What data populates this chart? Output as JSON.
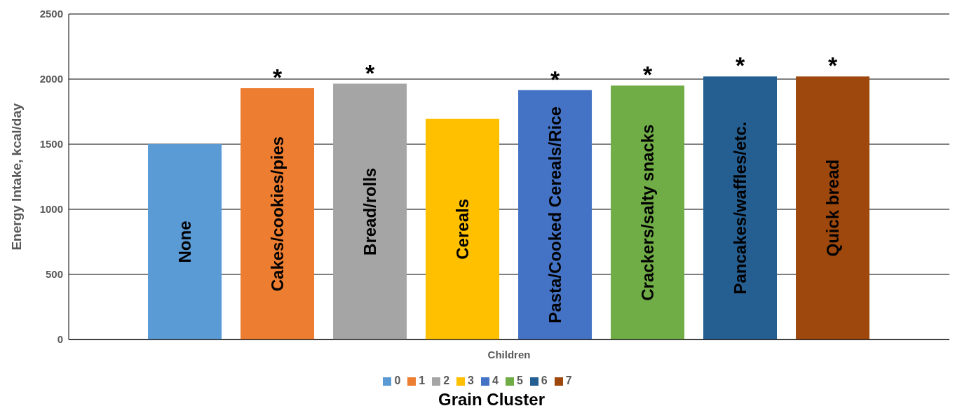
{
  "chart_data": {
    "type": "bar",
    "xlabel": "Grain Cluster",
    "ylabel": "Energy Intake, kcal/day",
    "categories": [
      "Children"
    ],
    "series": [
      {
        "name": "0",
        "color": "#5b9bd5",
        "values": [
          1500
        ],
        "value_labels": [
          "None"
        ]
      },
      {
        "name": "1",
        "color": "#ed7d31",
        "values": [
          1930
        ],
        "value_labels": [
          "Cakes/cookies/pies"
        ]
      },
      {
        "name": "2",
        "color": "#a5a5a5",
        "values": [
          1965
        ],
        "value_labels": [
          "Bread/rolls"
        ]
      },
      {
        "name": "3",
        "color": "#ffc000",
        "values": [
          1695
        ],
        "value_labels": [
          "Cereals"
        ]
      },
      {
        "name": "4",
        "color": "#4472c4",
        "values": [
          1915
        ],
        "value_labels": [
          "Pasta/Cooked Cereals/Rice"
        ]
      },
      {
        "name": "5",
        "color": "#70ad47",
        "values": [
          1950
        ],
        "value_labels": [
          "Crackers/salty snacks"
        ]
      },
      {
        "name": "6",
        "color": "#255e91",
        "values": [
          2020
        ],
        "value_labels": [
          "Pancakes/waffles/etc."
        ]
      },
      {
        "name": "7",
        "color": "#9e480e",
        "values": [
          2020
        ],
        "value_labels": [
          "Quick bread"
        ]
      }
    ],
    "annotations": [
      null,
      "*",
      "*",
      null,
      "*",
      "*",
      "*",
      "*"
    ],
    "ylim": [
      0,
      2500
    ],
    "yticks": [
      0,
      500,
      1000,
      1500,
      2000,
      2500
    ],
    "grid": "y",
    "legend": "bottom"
  }
}
